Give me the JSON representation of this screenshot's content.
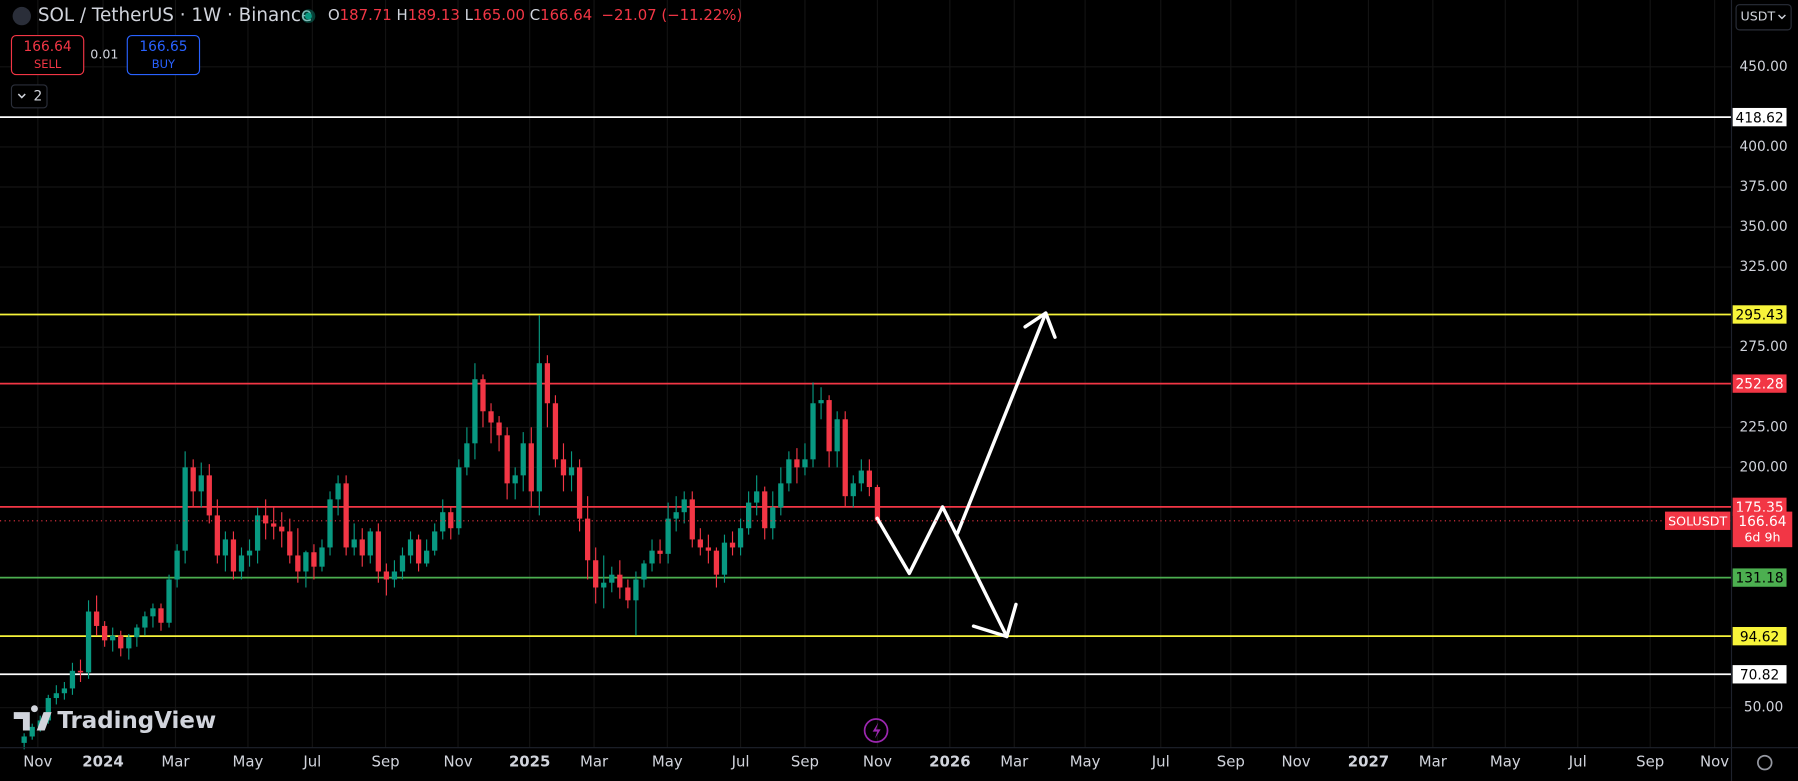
{
  "header": {
    "symbol": "SOL / TetherUS · 1W · Binance",
    "o": "O",
    "open": "187.71",
    "h": "H",
    "high": "189.13",
    "l": "L",
    "low": "165.00",
    "c": "C",
    "close": "166.64",
    "change": "−21.07 (−11.22%)"
  },
  "trade": {
    "sell_price": "166.64",
    "sell": "SELL",
    "spread": "0.01",
    "buy_price": "166.65",
    "buy": "BUY"
  },
  "indicators_count": "2",
  "currency": "USDT",
  "logo": "TradingView",
  "symbol_tag": "SOLUSDT",
  "countdown": "6d 9h",
  "chart_data": {
    "type": "candlestick",
    "open": [
      28,
      32,
      38,
      42,
      56,
      59,
      62,
      73,
      72,
      110,
      101,
      92,
      95,
      87,
      94,
      100,
      107,
      112,
      103,
      130,
      148,
      200,
      185,
      195,
      170,
      145,
      155,
      135,
      145,
      148,
      170,
      165,
      163,
      160,
      145,
      135,
      147,
      138,
      150,
      180,
      190,
      150,
      155,
      145,
      160,
      135,
      130,
      135,
      145,
      155,
      140,
      148,
      160,
      172,
      162,
      200,
      215,
      255,
      235,
      228,
      220,
      190,
      195,
      215,
      185,
      265,
      240,
      205,
      195,
      200,
      168,
      142,
      125,
      128,
      133,
      125,
      117,
      130,
      140,
      148,
      146,
      168,
      172,
      180,
      155,
      150,
      148,
      133,
      153,
      150,
      162,
      178,
      185,
      162,
      175,
      190,
      205,
      200,
      205,
      240,
      242,
      210,
      230,
      182,
      190,
      198,
      187.71
    ],
    "high": [
      34,
      40,
      45,
      58,
      64,
      66,
      78,
      80,
      117,
      120,
      104,
      100,
      98,
      96,
      102,
      110,
      115,
      115,
      133,
      152,
      210,
      205,
      203,
      202,
      180,
      160,
      160,
      150,
      155,
      175,
      180,
      175,
      172,
      168,
      162,
      148,
      152,
      155,
      185,
      195,
      195,
      165,
      162,
      162,
      165,
      140,
      142,
      150,
      160,
      158,
      155,
      165,
      180,
      175,
      205,
      225,
      265,
      258,
      240,
      232,
      225,
      200,
      222,
      225,
      295,
      270,
      245,
      215,
      210,
      205,
      182,
      150,
      145,
      138,
      142,
      130,
      135,
      142,
      155,
      155,
      178,
      182,
      185,
      185,
      162,
      158,
      150,
      158,
      160,
      168,
      185,
      195,
      188,
      185,
      200,
      210,
      212,
      215,
      253,
      250,
      245,
      235,
      235,
      195,
      205,
      205,
      189.13
    ],
    "low": [
      24,
      30,
      35,
      40,
      52,
      55,
      58,
      66,
      68,
      95,
      88,
      85,
      82,
      80,
      88,
      95,
      100,
      98,
      100,
      125,
      140,
      175,
      175,
      165,
      140,
      135,
      130,
      130,
      138,
      140,
      155,
      155,
      150,
      140,
      128,
      125,
      130,
      135,
      145,
      170,
      145,
      145,
      138,
      140,
      128,
      120,
      125,
      130,
      140,
      135,
      138,
      145,
      155,
      155,
      158,
      195,
      205,
      225,
      215,
      210,
      180,
      180,
      185,
      175,
      170,
      225,
      200,
      185,
      185,
      160,
      130,
      115,
      112,
      122,
      118,
      112,
      95,
      125,
      135,
      140,
      140,
      160,
      165,
      150,
      145,
      140,
      125,
      128,
      145,
      145,
      158,
      170,
      155,
      155,
      170,
      185,
      190,
      195,
      200,
      230,
      200,
      200,
      175,
      175,
      185,
      182,
      165.0
    ],
    "close": [
      32,
      38,
      42,
      56,
      59,
      62,
      73,
      72,
      110,
      101,
      92,
      95,
      87,
      94,
      100,
      107,
      112,
      103,
      130,
      148,
      200,
      185,
      195,
      170,
      145,
      155,
      135,
      145,
      148,
      170,
      165,
      163,
      160,
      145,
      135,
      147,
      138,
      150,
      180,
      190,
      150,
      155,
      145,
      160,
      135,
      130,
      135,
      145,
      155,
      140,
      148,
      160,
      172,
      162,
      200,
      215,
      255,
      235,
      228,
      220,
      190,
      195,
      215,
      185,
      265,
      240,
      205,
      195,
      200,
      168,
      142,
      125,
      128,
      133,
      125,
      117,
      130,
      140,
      148,
      146,
      168,
      172,
      180,
      155,
      150,
      148,
      133,
      153,
      150,
      162,
      178,
      185,
      162,
      175,
      190,
      205,
      200,
      205,
      240,
      242,
      210,
      230,
      182,
      190,
      198,
      187.71,
      166.64
    ],
    "up_color": "#089981",
    "down_color": "#f23645",
    "xlim": [
      -3,
      212.1
    ],
    "ylim": [
      25,
      491.7
    ],
    "xticks": [
      {
        "value": 1.7,
        "label": "Nov"
      },
      {
        "value": 9.8,
        "label": "2024"
      },
      {
        "value": 18.8,
        "label": "Mar"
      },
      {
        "value": 27.8,
        "label": "May"
      },
      {
        "value": 35.8,
        "label": "Jul"
      },
      {
        "value": 44.9,
        "label": "Sep"
      },
      {
        "value": 53.9,
        "label": "Nov"
      },
      {
        "value": 62.8,
        "label": "2025"
      },
      {
        "value": 70.8,
        "label": "Mar"
      },
      {
        "value": 79.9,
        "label": "May"
      },
      {
        "value": 89,
        "label": "Jul"
      },
      {
        "value": 97,
        "label": "Sep"
      },
      {
        "value": 106,
        "label": "Nov"
      },
      {
        "value": 115,
        "label": "2026"
      },
      {
        "value": 123,
        "label": "Mar"
      },
      {
        "value": 131.8,
        "label": "May"
      },
      {
        "value": 141.2,
        "label": "Jul"
      },
      {
        "value": 149.9,
        "label": "Sep"
      },
      {
        "value": 158,
        "label": "Nov"
      },
      {
        "value": 167,
        "label": "2027"
      },
      {
        "value": 175,
        "label": "Mar"
      },
      {
        "value": 184,
        "label": "May"
      },
      {
        "value": 193,
        "label": "Jul"
      },
      {
        "value": 202,
        "label": "Sep"
      },
      {
        "value": 210,
        "label": "Nov"
      }
    ],
    "yticks": [
      {
        "value": 50,
        "label": "50.00"
      },
      {
        "value": 200,
        "label": "200.00"
      },
      {
        "value": 225,
        "label": "225.00"
      },
      {
        "value": 275,
        "label": "275.00"
      },
      {
        "value": 325,
        "label": "325.00"
      },
      {
        "value": 350,
        "label": "350.00"
      },
      {
        "value": 375,
        "label": "375.00"
      },
      {
        "value": 400,
        "label": "400.00"
      },
      {
        "value": 450,
        "label": "450.00"
      }
    ],
    "levels": [
      {
        "value": 418.62,
        "color": "#ffffff"
      },
      {
        "value": 295.43,
        "color": "#f7f43a"
      },
      {
        "value": 252.28,
        "color": "#f23645"
      },
      {
        "value": 175.35,
        "color": "#f23645"
      },
      {
        "value": 131.18,
        "color": "#4caf50"
      },
      {
        "value": 94.62,
        "color": "#f7f43a"
      },
      {
        "value": 70.82,
        "color": "#ffffff"
      }
    ],
    "grid": true
  }
}
